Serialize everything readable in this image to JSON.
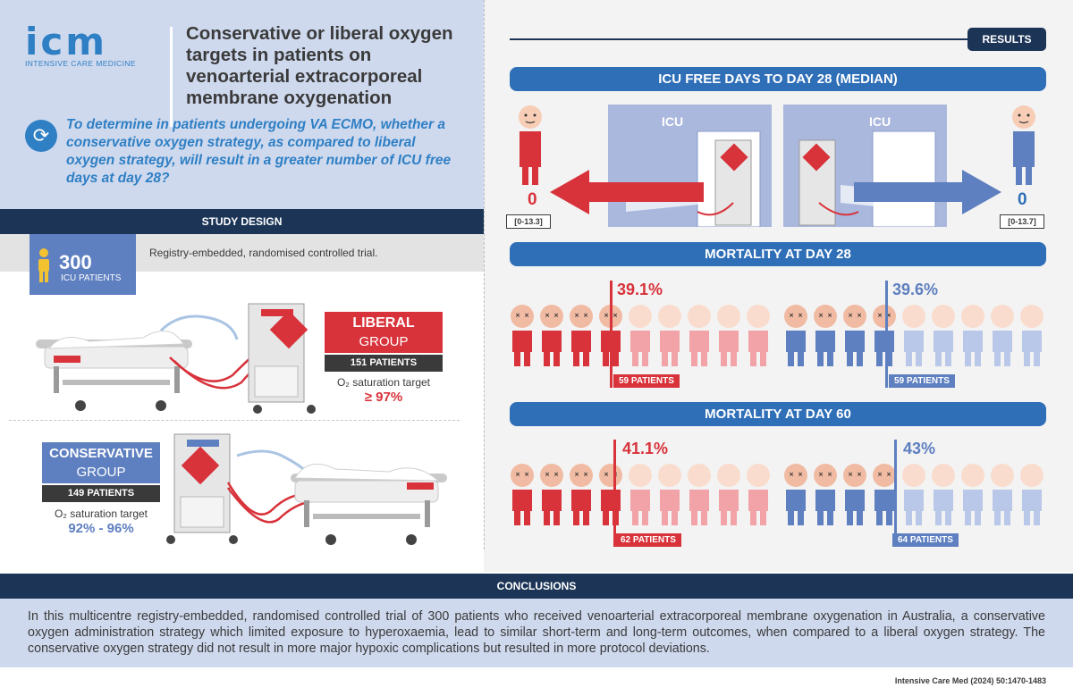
{
  "header": {
    "logo_text": "icm",
    "logo_subtitle": "INTENSIVE CARE MEDICINE",
    "title": "Conservative or liberal oxygen targets in patients on venoarterial extracorporeal membrane oxygenation",
    "objective": "To determine in patients undergoing VA ECMO, whether a conservative oxygen strategy, as compared to liberal oxygen strategy, will result in a greater number of ICU free days at day 28?"
  },
  "study_design": {
    "heading": "STUDY DESIGN",
    "description": "Registry-embedded, randomised controlled trial.",
    "patients_number": "300",
    "patients_label": "ICU PATIENTS",
    "liberal": {
      "name": "LIBERAL",
      "group_word": "GROUP",
      "patients": "151 PATIENTS",
      "target_label": "O₂ saturation target",
      "target": "≥ 97%"
    },
    "conservative": {
      "name": "CONSERVATIVE",
      "group_word": "GROUP",
      "patients": "149 PATIENTS",
      "target_label": "O₂ saturation target",
      "target": "92% - 96%"
    }
  },
  "results": {
    "tab_label": "RESULTS",
    "icu_free": {
      "heading": "ICU FREE DAYS TO DAY 28 (MEDIAN)",
      "room_label": "ICU",
      "liberal_value": "0",
      "liberal_iqr": "[0-13.3]",
      "conservative_value": "0",
      "conservative_iqr": "[0-13.7]"
    },
    "mortality_28": {
      "heading": "MORTALITY AT DAY 28",
      "liberal_pct": "39.1%",
      "liberal_patients": "59 PATIENTS",
      "liberal_fraction": 0.391,
      "conservative_pct": "39.6%",
      "conservative_patients": "59 PATIENTS",
      "conservative_fraction": 0.396
    },
    "mortality_60": {
      "heading": "MORTALITY AT DAY 60",
      "liberal_pct": "41.1%",
      "liberal_patients": "62 PATIENTS",
      "liberal_fraction": 0.411,
      "conservative_pct": "43%",
      "conservative_patients": "64 PATIENTS",
      "conservative_fraction": 0.43
    }
  },
  "conclusions": {
    "heading": "CONCLUSIONS",
    "text": "In this multicentre registry-embedded, randomised controlled trial of 300 patients who received venoarterial extracorporeal membrane oxygenation in Australia, a conservative oxygen administration strategy which limited exposure to hyperoxaemia, lead to similar short-term and long-term outcomes, when compared to a liberal oxygen strategy. The conservative oxygen strategy did not result in more major hypoxic complications but resulted in more protocol deviations."
  },
  "citation": "Intensive Care Med (2024) 50:1470-1483",
  "colors": {
    "liberal": "#d8323a",
    "liberal_light": "#f2a3a7",
    "conservative": "#5e7fc0",
    "conservative_light": "#b9c8e8",
    "navy": "#1c3557",
    "banner_blue": "#2f6fb7",
    "panel": "#cfd9ee"
  },
  "icons": {
    "objective": "refresh-arrows-icon",
    "patient_figure": "person-icon",
    "ecmo_machine": "ecmo-machine-icon",
    "hospital_bed": "hospital-bed-icon"
  }
}
